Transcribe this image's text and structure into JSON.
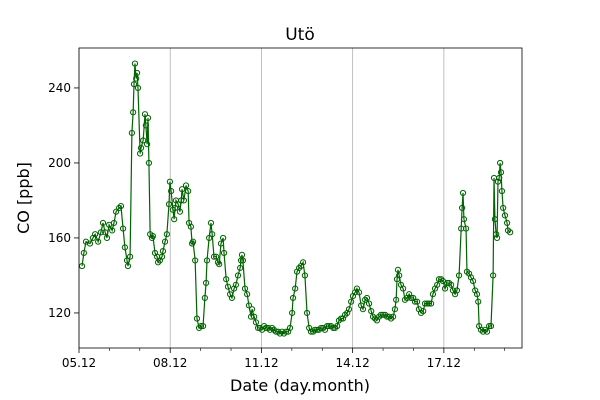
{
  "chart_data": {
    "type": "line",
    "title": "Utö",
    "x_label": "Date (day.month)",
    "y_label": "CO [ppb]",
    "x": [
      5.1,
      5.16,
      5.23,
      5.36,
      5.46,
      5.53,
      5.63,
      5.72,
      5.79,
      5.86,
      5.92,
      5.99,
      6.09,
      6.15,
      6.22,
      6.32,
      6.38,
      6.45,
      6.51,
      6.58,
      6.61,
      6.68,
      6.74,
      6.78,
      6.81,
      6.84,
      6.88,
      6.91,
      6.94,
      7.01,
      7.04,
      7.11,
      7.17,
      7.2,
      7.24,
      7.27,
      7.3,
      7.34,
      7.4,
      7.43,
      7.5,
      7.57,
      7.6,
      7.66,
      7.73,
      7.76,
      7.83,
      7.89,
      7.96,
      7.99,
      8.03,
      8.09,
      8.13,
      8.16,
      8.19,
      8.26,
      8.32,
      8.36,
      8.39,
      8.45,
      8.52,
      8.59,
      8.62,
      8.68,
      8.72,
      8.75,
      8.82,
      8.88,
      8.95,
      9.01,
      9.08,
      9.14,
      9.18,
      9.21,
      9.28,
      9.34,
      9.38,
      9.44,
      9.51,
      9.57,
      9.61,
      9.67,
      9.74,
      9.77,
      9.84,
      9.9,
      9.97,
      10.03,
      10.1,
      10.16,
      10.23,
      10.3,
      10.33,
      10.36,
      10.39,
      10.46,
      10.53,
      10.59,
      10.66,
      10.69,
      10.76,
      10.82,
      10.89,
      10.95,
      11.02,
      11.09,
      11.15,
      11.22,
      11.28,
      11.35,
      11.41,
      11.48,
      11.55,
      11.61,
      11.68,
      11.74,
      11.81,
      11.88,
      11.94,
      12.01,
      12.04,
      12.11,
      12.17,
      12.24,
      12.3,
      12.37,
      12.43,
      12.5,
      12.57,
      12.63,
      12.7,
      12.76,
      12.83,
      12.89,
      12.96,
      13.03,
      13.09,
      13.16,
      13.22,
      13.29,
      13.36,
      13.42,
      13.49,
      13.55,
      13.62,
      13.68,
      13.75,
      13.82,
      13.88,
      13.95,
      14.01,
      14.08,
      14.14,
      14.21,
      14.28,
      14.34,
      14.41,
      14.47,
      14.54,
      14.61,
      14.67,
      14.74,
      14.8,
      14.87,
      14.93,
      15.0,
      15.07,
      15.13,
      15.2,
      15.26,
      15.33,
      15.39,
      15.43,
      15.46,
      15.49,
      15.53,
      15.59,
      15.66,
      15.72,
      15.79,
      15.86,
      15.92,
      15.99,
      16.05,
      16.12,
      16.18,
      16.25,
      16.32,
      16.38,
      16.45,
      16.51,
      16.58,
      16.64,
      16.71,
      16.78,
      16.84,
      16.91,
      16.97,
      17.04,
      17.11,
      17.17,
      17.24,
      17.3,
      17.37,
      17.43,
      17.5,
      17.57,
      17.6,
      17.63,
      17.66,
      17.73,
      17.76,
      17.83,
      17.89,
      17.96,
      18.03,
      18.09,
      18.13,
      18.16,
      18.22,
      18.29,
      18.36,
      18.42,
      18.49,
      18.55,
      18.62,
      18.65,
      18.68,
      18.72,
      18.75,
      18.78,
      18.82,
      18.85,
      18.88,
      18.91,
      18.95,
      19.01,
      19.08,
      19.11,
      19.18
    ],
    "series": [
      {
        "name": "Utö",
        "color": "#006400",
        "values": [
          145,
          152,
          158,
          157,
          160,
          162,
          158,
          163,
          168,
          163,
          160,
          167,
          164,
          168,
          174,
          176,
          177,
          165,
          155,
          148,
          145,
          150,
          216,
          227,
          242,
          253,
          245,
          248,
          240,
          205,
          208,
          212,
          226,
          220,
          210,
          224,
          200,
          162,
          160,
          161,
          152,
          150,
          147,
          148,
          150,
          153,
          158,
          162,
          178,
          190,
          185,
          175,
          170,
          176,
          180,
          178,
          174,
          180,
          186,
          180,
          188,
          185,
          168,
          166,
          157,
          158,
          148,
          117,
          112,
          113,
          113,
          128,
          136,
          148,
          160,
          168,
          162,
          150,
          150,
          147,
          146,
          157,
          160,
          152,
          138,
          134,
          130,
          128,
          133,
          135,
          140,
          144,
          148,
          151,
          148,
          133,
          130,
          124,
          118,
          122,
          118,
          115,
          112,
          112,
          111,
          113,
          112,
          112,
          111,
          112,
          111,
          110,
          110,
          109,
          110,
          109,
          110,
          110,
          112,
          120,
          128,
          133,
          142,
          144,
          145,
          147,
          140,
          120,
          112,
          110,
          110,
          111,
          111,
          111,
          112,
          112,
          111,
          113,
          113,
          113,
          112,
          112,
          113,
          116,
          117,
          117,
          119,
          120,
          122,
          126,
          129,
          131,
          133,
          131,
          124,
          122,
          127,
          128,
          125,
          121,
          118,
          117,
          116,
          118,
          119,
          119,
          119,
          118,
          118,
          117,
          118,
          122,
          127,
          138,
          143,
          140,
          135,
          133,
          127,
          128,
          130,
          128,
          128,
          126,
          126,
          122,
          120,
          121,
          125,
          125,
          125,
          125,
          130,
          133,
          135,
          138,
          138,
          137,
          133,
          136,
          136,
          135,
          132,
          130,
          132,
          140,
          165,
          176,
          184,
          170,
          165,
          142,
          141,
          139,
          137,
          132,
          130,
          126,
          113,
          111,
          110,
          111,
          110,
          113,
          113,
          140,
          192,
          170,
          162,
          160,
          190,
          192,
          200,
          195,
          185,
          176,
          172,
          168,
          164,
          163
        ]
      }
    ],
    "xlim": [
      5,
      19.57
    ],
    "xticks": [
      {
        "value": 5,
        "label": "05.12"
      },
      {
        "value": 8,
        "label": "08.12"
      },
      {
        "value": 11,
        "label": "11.12"
      },
      {
        "value": 14,
        "label": "14.12"
      },
      {
        "value": 17,
        "label": "17.12"
      }
    ],
    "xminorticks": [
      6,
      7,
      9,
      10,
      12,
      13,
      15,
      16,
      18,
      19
    ],
    "ylim": [
      101.3,
      261.3
    ],
    "yticks": [
      120,
      160,
      200,
      240
    ],
    "grid": "x"
  }
}
